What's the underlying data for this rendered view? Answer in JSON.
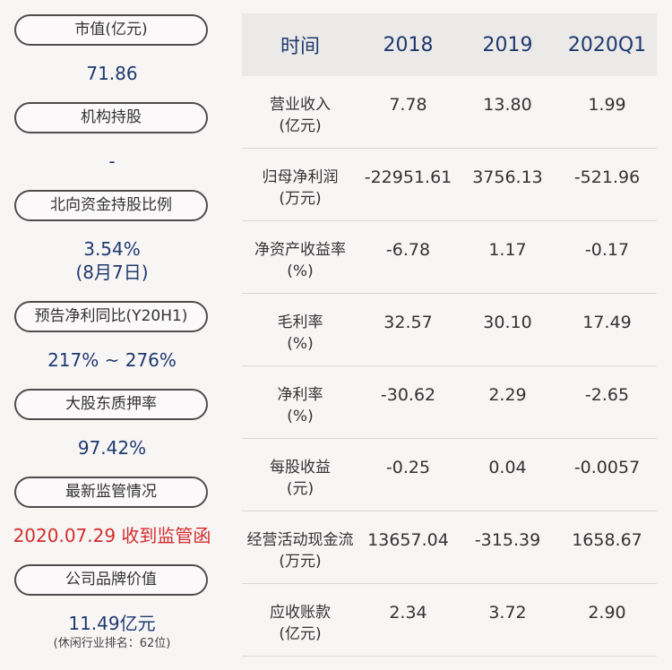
{
  "left_panel": [
    {
      "label": "市值(亿元)",
      "value": "71.86"
    },
    {
      "label": "机构持股",
      "value": "-"
    },
    {
      "label": "北向资金持股比例",
      "value": "3.54%",
      "value2": "(8月7日)"
    },
    {
      "label": "预告净利同比(Y20H1)",
      "value": "217% ~ 276%"
    },
    {
      "label": "大股东质押率",
      "value": "97.42%"
    },
    {
      "label": "最新监管情况",
      "value": "2020.07.29 收到监管函"
    },
    {
      "label": "公司品牌价值",
      "value": "11.49亿元",
      "note": "(休闲行业排名：62位)"
    }
  ],
  "table": {
    "headers": [
      "时间",
      "2018",
      "2019",
      "2020Q1"
    ],
    "rows": [
      {
        "label": "营业收入",
        "unit": "(亿元)",
        "values": [
          "7.78",
          "13.80",
          "1.99"
        ]
      },
      {
        "label": "归母净利润",
        "unit": "(万元)",
        "values": [
          "-22951.61",
          "3756.13",
          "-521.96"
        ]
      },
      {
        "label": "净资产收益率",
        "unit": "(%)",
        "values": [
          "-6.78",
          "1.17",
          "-0.17"
        ]
      },
      {
        "label": "毛利率",
        "unit": "(%)",
        "values": [
          "32.57",
          "30.10",
          "17.49"
        ]
      },
      {
        "label": "净利率",
        "unit": "(%)",
        "values": [
          "-30.62",
          "2.29",
          "-2.65"
        ]
      },
      {
        "label": "每股收益",
        "unit": "(元)",
        "values": [
          "-0.25",
          "0.04",
          "-0.0057"
        ]
      },
      {
        "label": "经营活动现金流",
        "unit": "(万元)",
        "values": [
          "13657.04",
          "-315.39",
          "1658.67"
        ]
      },
      {
        "label": "应收账款",
        "unit": "(亿元)",
        "values": [
          "2.34",
          "3.72",
          "2.90"
        ]
      }
    ]
  },
  "colors": {
    "value_blue": "#1f3a6e",
    "alert_red": "#d42c2c",
    "header_bg": "#ece9e9"
  }
}
